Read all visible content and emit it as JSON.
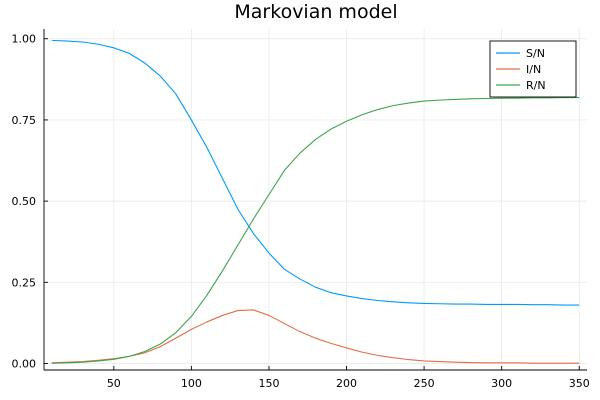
{
  "chart_data": {
    "type": "line",
    "title": "Markovian model",
    "xlabel": "",
    "ylabel": "",
    "xlim": [
      5,
      355
    ],
    "ylim": [
      -0.02,
      1.03
    ],
    "grid": true,
    "legend": "top-right",
    "x_ticks": [
      50,
      100,
      150,
      200,
      250,
      300,
      350
    ],
    "x_tick_labels": [
      "50",
      "100",
      "150",
      "200",
      "250",
      "300",
      "350"
    ],
    "y_ticks": [
      0,
      0.25,
      0.5,
      0.75,
      1.0
    ],
    "y_tick_labels": [
      "0.00",
      "0.25",
      "0.50",
      "0.75",
      "1.00"
    ],
    "x": [
      10,
      20,
      30,
      40,
      50,
      60,
      70,
      80,
      90,
      100,
      110,
      120,
      130,
      140,
      150,
      160,
      170,
      180,
      190,
      200,
      210,
      220,
      230,
      240,
      250,
      260,
      270,
      280,
      290,
      300,
      310,
      320,
      330,
      340,
      350
    ],
    "series": [
      {
        "name": "S/N",
        "color": "#009af9",
        "values": [
          0.995,
          0.993,
          0.99,
          0.983,
          0.972,
          0.955,
          0.925,
          0.885,
          0.83,
          0.75,
          0.665,
          0.57,
          0.475,
          0.4,
          0.34,
          0.29,
          0.26,
          0.235,
          0.218,
          0.208,
          0.2,
          0.194,
          0.19,
          0.187,
          0.185,
          0.184,
          0.183,
          0.183,
          0.182,
          0.182,
          0.182,
          0.181,
          0.181,
          0.18,
          0.18
        ]
      },
      {
        "name": "I/N",
        "color": "#e26f46",
        "values": [
          0.002,
          0.004,
          0.006,
          0.01,
          0.015,
          0.022,
          0.033,
          0.052,
          0.078,
          0.105,
          0.128,
          0.148,
          0.163,
          0.165,
          0.148,
          0.123,
          0.098,
          0.078,
          0.062,
          0.048,
          0.035,
          0.025,
          0.018,
          0.012,
          0.008,
          0.006,
          0.004,
          0.003,
          0.002,
          0.002,
          0.002,
          0.001,
          0.001,
          0.001,
          0.001
        ]
      },
      {
        "name": "R/N",
        "color": "#3da44d",
        "values": [
          0.001,
          0.002,
          0.004,
          0.008,
          0.013,
          0.022,
          0.037,
          0.06,
          0.095,
          0.145,
          0.21,
          0.285,
          0.365,
          0.445,
          0.52,
          0.595,
          0.648,
          0.69,
          0.722,
          0.746,
          0.766,
          0.782,
          0.794,
          0.802,
          0.808,
          0.811,
          0.813,
          0.815,
          0.816,
          0.817,
          0.817,
          0.818,
          0.818,
          0.819,
          0.819
        ]
      }
    ]
  }
}
